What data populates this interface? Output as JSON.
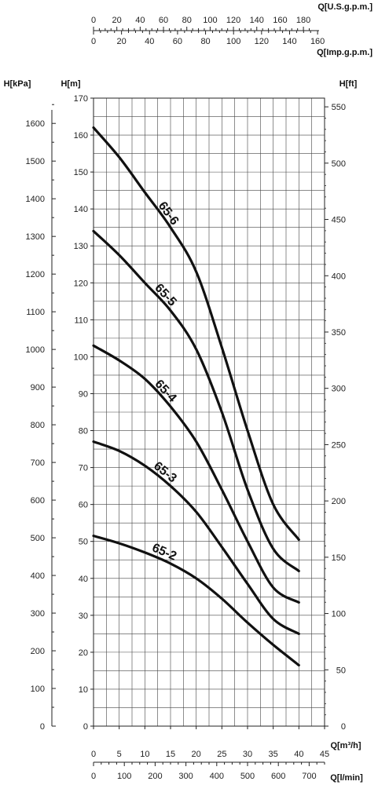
{
  "chart_data": {
    "type": "line",
    "grid": true,
    "x": {
      "label": "Q[m³/h]",
      "range": [
        0,
        45
      ],
      "ticks": [
        0,
        5,
        10,
        15,
        20,
        25,
        30,
        35,
        40,
        45
      ]
    },
    "y": {
      "label": "H[m]",
      "range": [
        0,
        170
      ],
      "ticks": [
        0,
        10,
        20,
        30,
        40,
        50,
        60,
        70,
        80,
        90,
        100,
        110,
        120,
        130,
        140,
        150,
        160,
        170
      ]
    },
    "secondary_axes": {
      "left_kpa": {
        "label": "H[kPa]",
        "ticks": [
          0,
          100,
          200,
          300,
          400,
          500,
          600,
          700,
          800,
          900,
          1000,
          1100,
          1200,
          1300,
          1400,
          1500,
          1600
        ]
      },
      "right_ft": {
        "label": "H[ft]",
        "ticks": [
          0,
          50,
          100,
          150,
          200,
          250,
          300,
          350,
          400,
          450,
          500,
          550
        ]
      },
      "top_usgpm": {
        "label": "Q[U.S.g.p.m.]",
        "ticks": [
          0,
          20,
          40,
          60,
          80,
          100,
          120,
          140,
          160,
          180
        ]
      },
      "top_impgpm": {
        "label": "Q[Imp.g.p.m.]",
        "ticks": [
          0,
          20,
          40,
          60,
          80,
          100,
          120,
          140,
          160
        ]
      },
      "bottom_lmin": {
        "label": "Q[l/min]",
        "ticks": [
          0,
          100,
          200,
          300,
          400,
          500,
          600,
          700
        ]
      }
    },
    "series": [
      {
        "name": "65-2",
        "x": [
          0,
          5,
          10,
          15,
          20,
          25,
          30,
          35,
          40
        ],
        "y": [
          51.5,
          49.5,
          47,
          44,
          40,
          34.5,
          28,
          22,
          16.5
        ]
      },
      {
        "name": "65-3",
        "x": [
          0,
          5,
          10,
          15,
          20,
          25,
          30,
          35,
          40
        ],
        "y": [
          77,
          74.5,
          70.5,
          65,
          58,
          48.5,
          38.5,
          29,
          25
        ]
      },
      {
        "name": "65-4",
        "x": [
          0,
          5,
          10,
          15,
          20,
          25,
          30,
          35,
          40
        ],
        "y": [
          103,
          99,
          94,
          86.5,
          77,
          64,
          50,
          37.5,
          33.5
        ]
      },
      {
        "name": "65-5",
        "x": [
          0,
          5,
          10,
          15,
          20,
          25,
          30,
          35,
          40
        ],
        "y": [
          134,
          127.5,
          120,
          112.5,
          102,
          85,
          64,
          48,
          42
        ]
      },
      {
        "name": "65-6",
        "x": [
          0,
          5,
          10,
          15,
          20,
          25,
          30,
          35,
          40
        ],
        "y": [
          162,
          154,
          144.5,
          135,
          123,
          102.5,
          80,
          60,
          50.5
        ]
      }
    ]
  }
}
